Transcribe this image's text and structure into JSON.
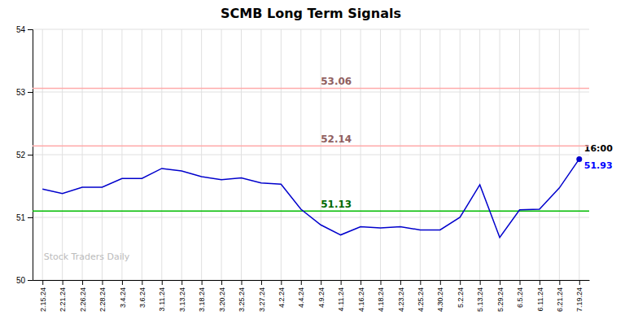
{
  "chart_data": {
    "type": "line",
    "title": "SCMB Long Term Signals",
    "categories": [
      "2.15.24",
      "2.21.24",
      "2.26.24",
      "2.28.24",
      "3.4.24",
      "3.6.24",
      "3.11.24",
      "3.13.24",
      "3.18.24",
      "3.20.24",
      "3.25.24",
      "3.27.24",
      "4.2.24",
      "4.4.24",
      "4.9.24",
      "4.11.24",
      "4.16.24",
      "4.18.24",
      "4.23.24",
      "4.25.24",
      "4.30.24",
      "5.2.24",
      "5.13.24",
      "5.29.24",
      "6.5.24",
      "6.11.24",
      "6.21.24",
      "7.19.24"
    ],
    "values": [
      51.45,
      51.38,
      51.48,
      51.48,
      51.62,
      51.62,
      51.78,
      51.74,
      51.65,
      51.6,
      51.63,
      51.55,
      51.53,
      51.13,
      50.88,
      50.72,
      50.85,
      50.83,
      50.85,
      50.8,
      50.8,
      51.0,
      51.52,
      50.68,
      51.12,
      51.13,
      51.47,
      51.93
    ],
    "color": "#0000cc",
    "ylim": [
      50,
      54
    ],
    "yticks": [
      50,
      51,
      52,
      53,
      54
    ],
    "grid": true,
    "hlines": [
      {
        "value": 51.1,
        "label": "51.13",
        "color": "#00bb00"
      },
      {
        "value": 52.14,
        "label": "52.14",
        "color": "#ffaaaa"
      },
      {
        "value": 53.06,
        "label": "53.06",
        "color": "#ffaaaa"
      }
    ],
    "watermark": {
      "text": "Stock Traders Daily",
      "color": "#bbbbbb"
    },
    "annotations": [
      {
        "text": "16:00"
      },
      {
        "text": "51.93",
        "color": "#0000ff"
      }
    ]
  }
}
